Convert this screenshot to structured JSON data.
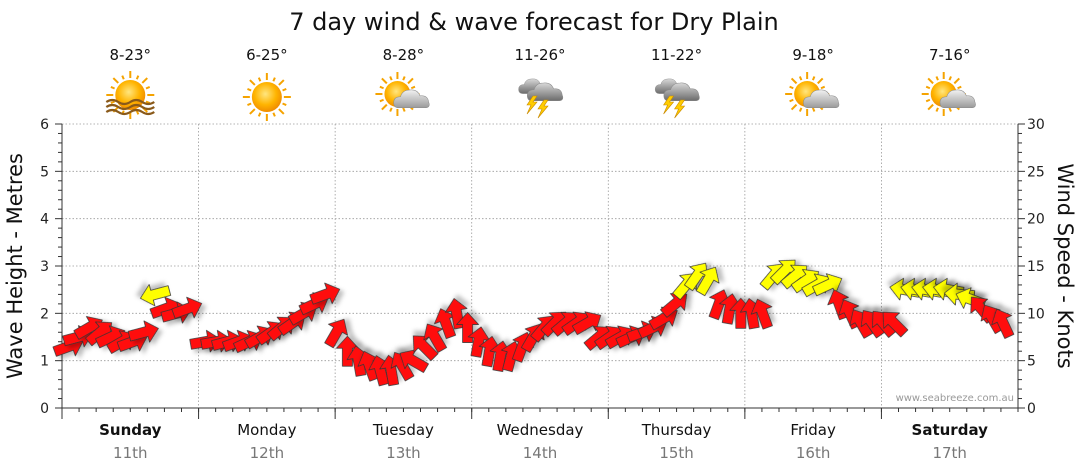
{
  "chart_data": {
    "type": "scatter",
    "title": "7 day wind & wave forecast for Dry Plain",
    "ylabel_left": "Wave Height - Metres",
    "ylabel_right": "Wind Speed - Knots",
    "ylim_left": [
      0,
      6
    ],
    "ylim_right": [
      0,
      30
    ],
    "left_ticks": [
      "0",
      "1",
      "2",
      "3",
      "4",
      "5",
      "6"
    ],
    "right_ticks": [
      "0",
      "5",
      "10",
      "15",
      "20",
      "25",
      "30"
    ],
    "grid": true,
    "credit": "www.seabreeze.com.au",
    "days": [
      {
        "name": "Sunday",
        "date": "11th",
        "temp": "8-23°",
        "icon": "sun-haze-icon",
        "bold": true
      },
      {
        "name": "Monday",
        "date": "12th",
        "temp": "6-25°",
        "icon": "sun-icon",
        "bold": false
      },
      {
        "name": "Tuesday",
        "date": "13th",
        "temp": "8-28°",
        "icon": "sun-cloud-icon",
        "bold": false
      },
      {
        "name": "Wednesday",
        "date": "14th",
        "temp": "11-26°",
        "icon": "storm-icon",
        "bold": false
      },
      {
        "name": "Thursday",
        "date": "15th",
        "temp": "11-22°",
        "icon": "storm-icon",
        "bold": false
      },
      {
        "name": "Friday",
        "date": "16th",
        "temp": "9-18°",
        "icon": "sun-cloud-icon",
        "bold": false
      },
      {
        "name": "Saturday",
        "date": "17th",
        "temp": "7-16°",
        "icon": "sun-cloud-icon",
        "bold": true
      }
    ],
    "series": [
      {
        "x": [
          0.05,
          0.12,
          0.2,
          0.28,
          0.36,
          0.44,
          0.52,
          0.6,
          0.68,
          0.76,
          0.84,
          0.92,
          1.05,
          1.13,
          1.21,
          1.29,
          1.37,
          1.45,
          1.53,
          1.61,
          1.69,
          1.77,
          1.85,
          1.93,
          2.01,
          2.09,
          2.17,
          2.25,
          2.33,
          2.41,
          2.49,
          2.57,
          2.65,
          2.73,
          2.81,
          2.89,
          2.97,
          3.05,
          3.13,
          3.21,
          3.29,
          3.37,
          3.45,
          3.53,
          3.61,
          3.69,
          3.77,
          3.85,
          3.93,
          4.01,
          4.09,
          4.17,
          4.25,
          4.33,
          4.41,
          4.49,
          4.57,
          4.65,
          4.73,
          4.81,
          4.89,
          4.97,
          5.05,
          5.13,
          5.21,
          5.29,
          5.37,
          5.45,
          5.53,
          5.61,
          5.69,
          5.77,
          5.85,
          5.93,
          6.01,
          6.09,
          6.17,
          6.25,
          6.33,
          6.41,
          6.49,
          6.57,
          6.65,
          6.73,
          6.81,
          6.89
        ],
        "wind": [
          6.5,
          7.5,
          8.5,
          8,
          7.5,
          7,
          7,
          8,
          12,
          10.5,
          10,
          10.5,
          7,
          7,
          7,
          7,
          7,
          7.5,
          8,
          8.5,
          9,
          10,
          11,
          12,
          8,
          6,
          5,
          4.5,
          4,
          4,
          4.5,
          5,
          6.5,
          7.5,
          9,
          10,
          8.5,
          7,
          6,
          5.5,
          5.5,
          6.5,
          7.5,
          8.5,
          9,
          9,
          9,
          9,
          7.5,
          7.5,
          7.5,
          7.5,
          8,
          8.5,
          9.5,
          11,
          13,
          14,
          13.5,
          11,
          10.5,
          10,
          10,
          10,
          14,
          14.5,
          14,
          13.5,
          13,
          13,
          11,
          10,
          9,
          9,
          9,
          9,
          12.5,
          12.5,
          12.5,
          12.5,
          12.5,
          12,
          11.5,
          10.5,
          9.5,
          9
        ],
        "dir": [
          -20,
          -15,
          -30,
          -40,
          -25,
          -30,
          -20,
          -15,
          165,
          -20,
          -15,
          -20,
          -10,
          -10,
          -15,
          -20,
          -25,
          -30,
          -35,
          -40,
          -35,
          -30,
          -25,
          -20,
          -60,
          -90,
          -100,
          -110,
          -105,
          -100,
          -120,
          -150,
          -135,
          -120,
          -110,
          -100,
          -90,
          -80,
          -80,
          -80,
          -75,
          -70,
          -60,
          -50,
          -45,
          -40,
          -35,
          -30,
          -40,
          -35,
          -30,
          -25,
          -20,
          -25,
          -30,
          -40,
          -50,
          -55,
          -60,
          -70,
          -80,
          -90,
          -100,
          -110,
          -50,
          -45,
          -40,
          -35,
          -30,
          -25,
          -110,
          -115,
          -120,
          -125,
          -130,
          -135,
          -170,
          -170,
          -170,
          -170,
          -170,
          -175,
          -160,
          -130,
          -120,
          -115
        ],
        "color": [
          "#ff1111",
          "#ff1111",
          "#ff1111",
          "#ff1111",
          "#ff1111",
          "#ff1111",
          "#ff1111",
          "#ff1111",
          "#ffff00",
          "#ff1111",
          "#ff1111",
          "#ff1111",
          "#ff1111",
          "#ff1111",
          "#ff1111",
          "#ff1111",
          "#ff1111",
          "#ff1111",
          "#ff1111",
          "#ff1111",
          "#ff1111",
          "#ff1111",
          "#ff1111",
          "#ff1111",
          "#ff1111",
          "#ff1111",
          "#ff1111",
          "#ff1111",
          "#ff1111",
          "#ff1111",
          "#ff1111",
          "#ff1111",
          "#ff1111",
          "#ff1111",
          "#ff1111",
          "#ff1111",
          "#ff1111",
          "#ff1111",
          "#ff1111",
          "#ff1111",
          "#ff1111",
          "#ff1111",
          "#ff1111",
          "#ff1111",
          "#ff1111",
          "#ff1111",
          "#ff1111",
          "#ff1111",
          "#ff1111",
          "#ff1111",
          "#ff1111",
          "#ff1111",
          "#ff1111",
          "#ff1111",
          "#ff1111",
          "#ff1111",
          "#ffff00",
          "#ffff00",
          "#ffff00",
          "#ff1111",
          "#ff1111",
          "#ff1111",
          "#ff1111",
          "#ff1111",
          "#ffff00",
          "#ffff00",
          "#ffff00",
          "#ffff00",
          "#ffff00",
          "#ffff00",
          "#ff1111",
          "#ff1111",
          "#ff1111",
          "#ff1111",
          "#ff1111",
          "#ff1111",
          "#ffff00",
          "#ffff00",
          "#ffff00",
          "#ffff00",
          "#ffff00",
          "#ffff00",
          "#ffff00",
          "#ff1111",
          "#ff1111",
          "#ff1111"
        ]
      }
    ]
  }
}
